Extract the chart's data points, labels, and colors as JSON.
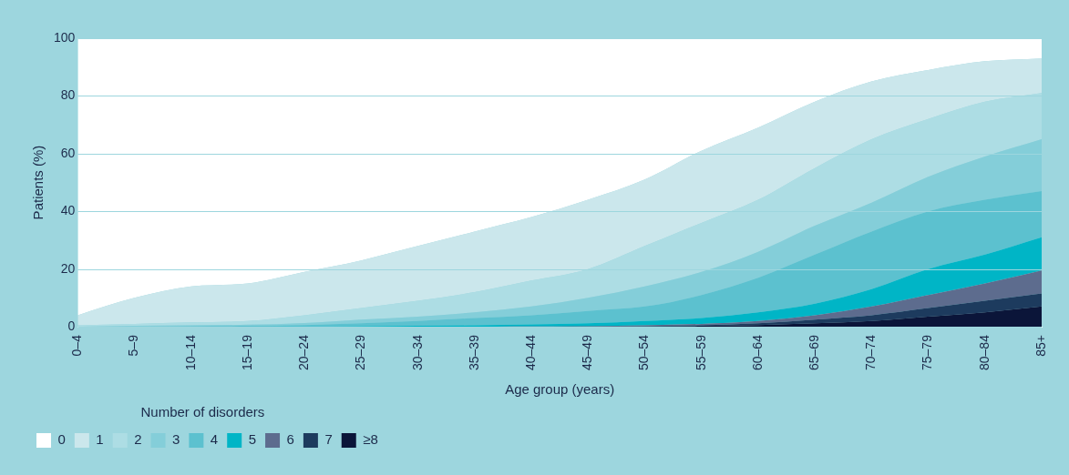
{
  "chart_data": {
    "type": "area",
    "stacked": true,
    "xlabel": "Age group (years)",
    "ylabel": "Patients (%)",
    "legend_title": "Number of disorders",
    "legend": "bottom left",
    "grid": "y",
    "categories": [
      "0–4",
      "5–9",
      "10–14",
      "15–19",
      "20–24",
      "25–29",
      "30–34",
      "35–39",
      "40–44",
      "45–49",
      "50–54",
      "55–59",
      "60–64",
      "65–69",
      "70–74",
      "75–79",
      "80–84",
      "85+"
    ],
    "ylim": [
      0,
      100
    ],
    "yticks": [
      0,
      20,
      40,
      60,
      80,
      100
    ],
    "series": [
      {
        "name": "≥8",
        "color": "#0b1539",
        "values": [
          0,
          0,
          0,
          0,
          0,
          0,
          0,
          0,
          0,
          0,
          0.1,
          0.3,
          0.6,
          1.2,
          2,
          3.5,
          5,
          7
        ]
      },
      {
        "name": "7",
        "color": "#1d3b5e",
        "values": [
          0,
          0,
          0,
          0,
          0,
          0,
          0,
          0,
          0,
          0.1,
          0.1,
          0.2,
          0.6,
          1.3,
          2,
          3,
          4,
          4.5
        ]
      },
      {
        "name": "6",
        "color": "#5d6c8e",
        "values": [
          0,
          0,
          0,
          0,
          0,
          0,
          0,
          0,
          0.1,
          0.1,
          0.3,
          0.5,
          0.8,
          1.5,
          3,
          4.5,
          6,
          8
        ]
      },
      {
        "name": "5",
        "color": "#00b5c6",
        "values": [
          0,
          0,
          0,
          0,
          0.1,
          0.2,
          0.3,
          0.5,
          0.7,
          1,
          1.5,
          2,
          3,
          4,
          6,
          9,
          10,
          11.5
        ]
      },
      {
        "name": "4",
        "color": "#5cc1cf",
        "values": [
          0,
          0,
          0.2,
          0.3,
          0.5,
          1,
          1.7,
          2.5,
          3.2,
          4.3,
          5,
          8,
          12,
          17,
          20,
          20,
          19,
          16
        ]
      },
      {
        "name": "3",
        "color": "#84ced9",
        "values": [
          0,
          0.3,
          0.3,
          0.4,
          0.7,
          1.3,
          1.5,
          2,
          3,
          4.5,
          7,
          8,
          9,
          10,
          10,
          12,
          15,
          18
        ]
      },
      {
        "name": "2",
        "color": "#addde4",
        "values": [
          0.5,
          0.7,
          1,
          1.3,
          2.7,
          4,
          5.5,
          7,
          9,
          10,
          14,
          17,
          18,
          20,
          22,
          20,
          19,
          16
        ]
      },
      {
        "name": "1",
        "color": "#cbe7ec",
        "values": [
          3.5,
          9,
          12.5,
          13,
          15,
          16.5,
          19,
          21,
          22,
          24,
          23,
          25,
          25,
          23,
          20,
          17,
          14,
          12
        ]
      },
      {
        "name": "0",
        "color": "#ffffff",
        "values": [
          96,
          90,
          86,
          85,
          81,
          77,
          72,
          67,
          62,
          56,
          49,
          39,
          31,
          22,
          15,
          11,
          8,
          7
        ]
      }
    ]
  }
}
